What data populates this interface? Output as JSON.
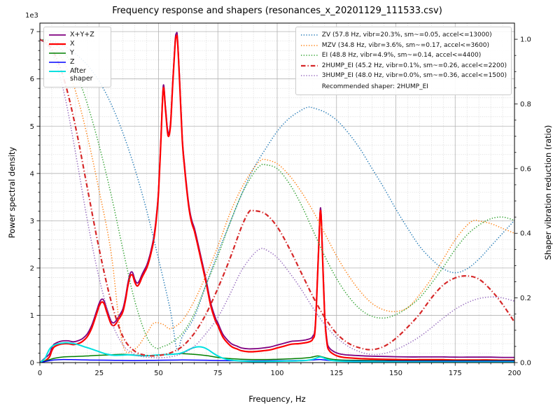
{
  "chart_data": {
    "type": "line",
    "title": "Frequency response and shapers (resonances_x_20201129_111533.csv)",
    "xlabel": "Frequency, Hz",
    "ylabel_left": "Power spectral density",
    "ylabel_right": "Shaper vibration reduction (ratio)",
    "offset_text": "1e3",
    "xlim": [
      0,
      200
    ],
    "ylim_left": [
      0,
      7180
    ],
    "ylim_right": [
      0,
      1.05
    ],
    "x_ticks": [
      0,
      25,
      50,
      75,
      100,
      125,
      150,
      175,
      200
    ],
    "y_ticks_left": [
      0,
      1,
      2,
      3,
      4,
      5,
      6,
      7
    ],
    "y_ticks_right": [
      "0.0",
      "0.2",
      "0.4",
      "0.6",
      "0.8",
      "1.0"
    ],
    "grid": {
      "major": true,
      "minor": true,
      "x_minor_step": 5,
      "y_minor_step_left": 200,
      "y_minor_step_right": 0.05
    },
    "recommended_label": "Recommended shaper: 2HUMP_EI",
    "psd_series": [
      {
        "name": "X+Y+Z",
        "color": "#800080",
        "style": "solid",
        "lw": 1.8,
        "x": [
          0,
          2,
          4,
          5,
          6,
          8,
          10,
          12,
          14,
          16,
          18,
          20,
          22,
          24,
          25,
          26,
          27,
          28,
          29,
          30,
          31,
          32,
          33,
          34,
          35,
          36,
          37,
          38,
          39,
          40,
          41,
          42,
          43,
          44,
          45,
          46,
          47,
          48,
          49,
          50,
          51,
          52,
          53,
          54,
          55,
          56,
          57,
          57.5,
          58,
          59,
          60,
          61,
          62,
          63,
          64,
          65,
          66,
          68,
          70,
          72,
          74,
          75,
          77,
          79,
          81,
          83,
          85,
          88,
          91,
          94,
          97,
          100,
          103,
          106,
          109,
          112,
          114,
          115,
          116,
          117,
          118,
          118.5,
          119,
          120,
          121,
          122,
          124,
          126,
          128,
          130,
          135,
          140,
          145,
          150,
          155,
          160,
          165,
          170,
          175,
          180,
          185,
          190,
          195,
          200
        ],
        "y": [
          0,
          90,
          180,
          310,
          390,
          440,
          460,
          460,
          440,
          460,
          510,
          610,
          810,
          1110,
          1260,
          1340,
          1310,
          1160,
          1010,
          880,
          840,
          880,
          960,
          1040,
          1140,
          1360,
          1660,
          1880,
          1910,
          1760,
          1680,
          1740,
          1860,
          1960,
          2060,
          2210,
          2410,
          2660,
          3060,
          3660,
          4760,
          5860,
          5360,
          4860,
          5060,
          5960,
          6810,
          6960,
          6860,
          5860,
          4760,
          4160,
          3660,
          3260,
          3010,
          2860,
          2660,
          2210,
          1760,
          1260,
          940,
          840,
          610,
          480,
          390,
          350,
          310,
          290,
          295,
          310,
          330,
          370,
          410,
          450,
          460,
          480,
          510,
          560,
          760,
          1860,
          3140,
          3160,
          2460,
          1060,
          460,
          310,
          230,
          190,
          170,
          160,
          145,
          135,
          130,
          125,
          120,
          120,
          120,
          120,
          115,
          115,
          115,
          115,
          110,
          110
        ]
      },
      {
        "name": "X",
        "color": "#ff0000",
        "style": "solid",
        "lw": 2.2,
        "x": [
          0,
          2,
          4,
          5,
          6,
          8,
          10,
          12,
          14,
          16,
          18,
          20,
          22,
          24,
          25,
          26,
          27,
          28,
          29,
          30,
          31,
          32,
          33,
          34,
          35,
          36,
          37,
          38,
          39,
          40,
          41,
          42,
          43,
          44,
          45,
          46,
          47,
          48,
          49,
          50,
          51,
          52,
          53,
          54,
          55,
          56,
          57,
          57.5,
          58,
          59,
          60,
          61,
          62,
          63,
          64,
          65,
          66,
          68,
          70,
          72,
          74,
          75,
          77,
          79,
          81,
          83,
          85,
          88,
          91,
          94,
          97,
          100,
          103,
          106,
          109,
          112,
          114,
          115,
          116,
          117,
          118,
          118.5,
          119,
          120,
          121,
          122,
          124,
          126,
          128,
          130,
          135,
          140,
          145,
          150,
          155,
          160,
          165,
          170,
          175,
          180,
          185,
          190,
          195,
          200
        ],
        "y": [
          0,
          30,
          120,
          250,
          330,
          380,
          400,
          400,
          380,
          400,
          450,
          550,
          750,
          1050,
          1200,
          1280,
          1250,
          1100,
          950,
          820,
          780,
          820,
          900,
          980,
          1080,
          1300,
          1600,
          1820,
          1850,
          1700,
          1620,
          1680,
          1800,
          1900,
          2000,
          2150,
          2350,
          2600,
          3000,
          3600,
          4700,
          5800,
          5300,
          4800,
          5000,
          5900,
          6750,
          6900,
          6800,
          5800,
          4700,
          4100,
          3600,
          3200,
          2950,
          2800,
          2600,
          2150,
          1700,
          1200,
          880,
          780,
          550,
          420,
          330,
          290,
          250,
          230,
          235,
          250,
          270,
          310,
          350,
          390,
          400,
          420,
          450,
          500,
          700,
          1800,
          3080,
          3100,
          2400,
          1000,
          400,
          250,
          170,
          130,
          110,
          100,
          85,
          75,
          70,
          65,
          60,
          60,
          60,
          60,
          55,
          55,
          55,
          55,
          50,
          50
        ]
      },
      {
        "name": "Y",
        "color": "#008000",
        "style": "solid",
        "lw": 1.5,
        "x": [
          0,
          4,
          6,
          10,
          15,
          20,
          25,
          30,
          35,
          40,
          45,
          50,
          55,
          58,
          60,
          65,
          70,
          75,
          80,
          85,
          90,
          95,
          100,
          105,
          110,
          114,
          117,
          119,
          122,
          125,
          130,
          140,
          150,
          160,
          170,
          180,
          190,
          200
        ],
        "y": [
          0,
          60,
          90,
          120,
          130,
          140,
          155,
          165,
          175,
          160,
          150,
          160,
          175,
          185,
          190,
          175,
          150,
          110,
          85,
          70,
          65,
          65,
          70,
          80,
          90,
          110,
          140,
          120,
          80,
          60,
          50,
          45,
          40,
          40,
          40,
          40,
          40,
          40
        ]
      },
      {
        "name": "Z",
        "color": "#0000ff",
        "style": "solid",
        "lw": 1.5,
        "x": [
          0,
          4,
          6,
          10,
          15,
          20,
          30,
          40,
          50,
          60,
          70,
          80,
          90,
          100,
          110,
          115,
          118,
          122,
          130,
          140,
          150,
          160,
          170,
          180,
          190,
          200
        ],
        "y": [
          0,
          40,
          55,
          65,
          60,
          55,
          50,
          45,
          50,
          55,
          50,
          40,
          35,
          40,
          45,
          55,
          65,
          45,
          35,
          30,
          30,
          30,
          30,
          30,
          30,
          30
        ]
      },
      {
        "name": "After shaper",
        "color": "#00e0e0",
        "style": "solid",
        "lw": 2,
        "x": [
          0,
          2,
          3,
          4,
          5,
          7,
          9,
          11,
          13,
          15,
          17,
          19,
          21,
          23,
          25,
          27,
          29,
          31,
          33,
          35,
          37,
          39,
          41,
          43,
          45,
          47,
          49,
          51,
          53,
          55,
          57,
          59,
          61,
          63,
          65,
          67,
          69,
          71,
          73,
          75,
          77,
          79,
          81,
          83,
          85,
          88,
          91,
          94,
          97,
          100,
          104,
          108,
          112,
          115,
          117,
          118,
          119,
          121,
          123,
          125,
          128,
          131,
          135,
          140,
          145,
          150,
          160,
          170,
          180,
          190,
          200
        ],
        "y": [
          0,
          80,
          180,
          280,
          340,
          390,
          410,
          420,
          410,
          395,
          365,
          330,
          300,
          265,
          230,
          195,
          170,
          155,
          155,
          160,
          165,
          160,
          150,
          145,
          145,
          150,
          160,
          165,
          170,
          175,
          180,
          195,
          230,
          280,
          320,
          335,
          320,
          270,
          200,
          140,
          95,
          65,
          50,
          40,
          32,
          25,
          22,
          22,
          25,
          28,
          32,
          36,
          45,
          70,
          105,
          120,
          110,
          70,
          45,
          35,
          28,
          24,
          20,
          18,
          16,
          15,
          13,
          12,
          12,
          11,
          10
        ]
      }
    ],
    "shaper_series": [
      {
        "name": "ZV",
        "label": "ZV (57.8 Hz, vibr=20.3%, sm~=0.05, accel<=13000)",
        "color": "#1f77b4",
        "style": "dotted",
        "lw": 1.5,
        "x": [
          0,
          5,
          10,
          15,
          20,
          25,
          30,
          35,
          40,
          45,
          50,
          55,
          57.8,
          60,
          65,
          70,
          75,
          80,
          85,
          90,
          95,
          100,
          105,
          110,
          113,
          115,
          120,
          125,
          130,
          135,
          140,
          145,
          150,
          155,
          160,
          165,
          170,
          175,
          180,
          185,
          190,
          195,
          200
        ],
        "y": [
          1.0,
          0.995,
          0.98,
          0.955,
          0.92,
          0.87,
          0.8,
          0.71,
          0.6,
          0.47,
          0.32,
          0.16,
          0.04,
          0.08,
          0.14,
          0.24,
          0.34,
          0.43,
          0.52,
          0.6,
          0.66,
          0.715,
          0.755,
          0.78,
          0.79,
          0.788,
          0.775,
          0.75,
          0.71,
          0.66,
          0.6,
          0.54,
          0.475,
          0.415,
          0.36,
          0.32,
          0.29,
          0.278,
          0.29,
          0.32,
          0.36,
          0.4,
          0.44
        ]
      },
      {
        "name": "MZV",
        "label": "MZV (34.8 Hz, vibr=3.6%, sm~=0.17, accel<=3600)",
        "color": "#ff7f0e",
        "style": "dotted",
        "lw": 1.5,
        "x": [
          0,
          5,
          10,
          15,
          20,
          25,
          30,
          34.8,
          40,
          45,
          48,
          52,
          55,
          60,
          65,
          70,
          75,
          80,
          85,
          90,
          93,
          95,
          100,
          105,
          110,
          115,
          120,
          125,
          130,
          135,
          140,
          145,
          150,
          155,
          160,
          165,
          170,
          175,
          180,
          183,
          185,
          190,
          195,
          200
        ],
        "y": [
          1.0,
          0.98,
          0.93,
          0.84,
          0.7,
          0.53,
          0.34,
          0.06,
          0.042,
          0.09,
          0.122,
          0.118,
          0.105,
          0.13,
          0.19,
          0.27,
          0.36,
          0.46,
          0.54,
          0.6,
          0.625,
          0.628,
          0.615,
          0.58,
          0.53,
          0.47,
          0.4,
          0.33,
          0.27,
          0.22,
          0.183,
          0.163,
          0.158,
          0.17,
          0.21,
          0.26,
          0.32,
          0.38,
          0.425,
          0.44,
          0.438,
          0.43,
          0.415,
          0.4
        ]
      },
      {
        "name": "EI",
        "label": "EI (48.8 Hz, vibr=4.9%, sm~=0.14, accel<=4400)",
        "color": "#2ca02c",
        "style": "dotted",
        "lw": 1.5,
        "x": [
          0,
          5,
          10,
          15,
          20,
          25,
          30,
          35,
          40,
          45,
          48.8,
          52,
          55,
          60,
          65,
          70,
          75,
          80,
          85,
          90,
          93,
          95,
          100,
          105,
          110,
          115,
          120,
          125,
          130,
          135,
          140,
          145,
          150,
          155,
          160,
          165,
          170,
          175,
          180,
          185,
          190,
          195,
          200
        ],
        "y": [
          1.0,
          0.99,
          0.96,
          0.9,
          0.8,
          0.67,
          0.52,
          0.35,
          0.19,
          0.08,
          0.045,
          0.05,
          0.06,
          0.09,
          0.15,
          0.24,
          0.33,
          0.43,
          0.52,
          0.585,
          0.61,
          0.612,
          0.6,
          0.555,
          0.49,
          0.41,
          0.33,
          0.26,
          0.205,
          0.165,
          0.143,
          0.138,
          0.148,
          0.17,
          0.2,
          0.245,
          0.295,
          0.35,
          0.395,
          0.425,
          0.445,
          0.45,
          0.44
        ]
      },
      {
        "name": "2HUMP_EI",
        "label": "2HUMP_EI (45.2 Hz, vibr=0.1%, sm~=0.26, accel<=2200)",
        "color": "#d62728",
        "style": "dashdot",
        "lw": 2.2,
        "x": [
          0,
          5,
          10,
          15,
          20,
          25,
          30,
          35,
          40,
          45,
          50,
          55,
          60,
          65,
          70,
          75,
          80,
          85,
          88,
          90,
          95,
          100,
          105,
          110,
          115,
          120,
          125,
          130,
          135,
          140,
          145,
          150,
          155,
          160,
          165,
          170,
          175,
          180,
          185,
          190,
          195,
          200
        ],
        "y": [
          1.0,
          0.97,
          0.88,
          0.73,
          0.54,
          0.35,
          0.19,
          0.08,
          0.035,
          0.022,
          0.022,
          0.03,
          0.05,
          0.09,
          0.15,
          0.23,
          0.32,
          0.42,
          0.465,
          0.47,
          0.46,
          0.42,
          0.355,
          0.28,
          0.205,
          0.14,
          0.09,
          0.06,
          0.045,
          0.04,
          0.05,
          0.075,
          0.11,
          0.15,
          0.2,
          0.24,
          0.262,
          0.268,
          0.258,
          0.225,
          0.18,
          0.125
        ]
      },
      {
        "name": "3HUMP_EI",
        "label": "3HUMP_EI (48.0 Hz, vibr=0.0%, sm~=0.36, accel<=1500)",
        "color": "#9467bd",
        "style": "dotted",
        "lw": 1.5,
        "x": [
          0,
          5,
          10,
          15,
          20,
          25,
          30,
          35,
          40,
          45,
          50,
          55,
          60,
          65,
          70,
          75,
          80,
          85,
          90,
          93,
          95,
          100,
          105,
          110,
          115,
          120,
          125,
          130,
          135,
          140,
          145,
          150,
          155,
          160,
          165,
          170,
          175,
          180,
          185,
          190,
          195,
          200
        ],
        "y": [
          1.0,
          0.96,
          0.84,
          0.65,
          0.44,
          0.26,
          0.13,
          0.055,
          0.025,
          0.017,
          0.015,
          0.018,
          0.028,
          0.05,
          0.09,
          0.14,
          0.21,
          0.285,
          0.335,
          0.352,
          0.35,
          0.325,
          0.28,
          0.228,
          0.17,
          0.118,
          0.078,
          0.05,
          0.033,
          0.025,
          0.028,
          0.04,
          0.058,
          0.08,
          0.108,
          0.138,
          0.165,
          0.185,
          0.198,
          0.203,
          0.2,
          0.19
        ]
      }
    ]
  }
}
